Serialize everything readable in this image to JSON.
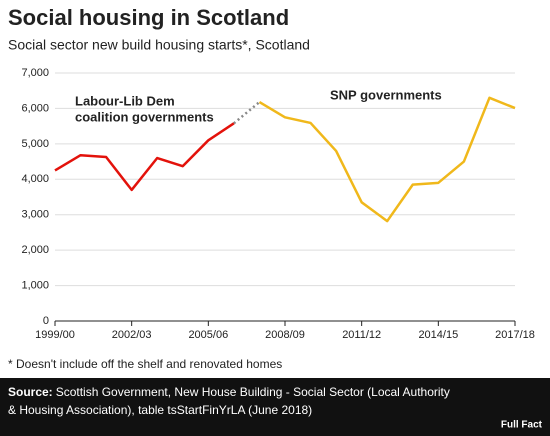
{
  "chart_data": {
    "type": "line",
    "title": "Social housing in Scotland",
    "subtitle": "Social sector new build housing starts*, Scotland",
    "categories": [
      "1999/00",
      null,
      null,
      "2002/03",
      null,
      null,
      "2005/06",
      null,
      null,
      "2008/09",
      null,
      null,
      "2011/12",
      null,
      null,
      "2014/15",
      null,
      null,
      "2017/18"
    ],
    "series": [
      {
        "color": "#e3120b",
        "values": [
          4250,
          4680,
          4630,
          3700,
          4600,
          4370,
          5100,
          5580,
          null,
          null,
          null,
          null,
          null,
          null,
          null,
          null,
          null,
          null,
          null
        ]
      },
      {
        "color": "#f0b81b",
        "values": [
          null,
          null,
          null,
          null,
          null,
          null,
          null,
          null,
          6180,
          5750,
          5590,
          4800,
          3350,
          2820,
          3850,
          3900,
          4500,
          6300,
          6010
        ]
      }
    ],
    "connector_color": "#888888",
    "annotations": [
      {
        "lines": [
          "Labour-Lib Dem",
          "coalition governments"
        ],
        "color": "#e3120b"
      },
      {
        "lines": [
          "SNP governments"
        ],
        "color": "#f0b81b"
      }
    ],
    "ylim": [
      0,
      7000
    ],
    "yticks": [
      0,
      {
        "value": 1000,
        "label": "1,000"
      },
      {
        "value": 2000,
        "label": "2,000"
      },
      {
        "value": 3000,
        "label": "3,000"
      },
      {
        "value": 4000,
        "label": "4,000"
      },
      {
        "value": 5000,
        "label": "5,000"
      },
      {
        "value": 6000,
        "label": "6,000"
      },
      {
        "value": 7000,
        "label": "7,000"
      }
    ],
    "grid": true,
    "footnote": "* Doesn't include off the shelf and renovated homes",
    "source": {
      "label": "Source:",
      "lines": [
        "Scottish Government, New House Building - Social Sector (Local Authority",
        "& Housing Association), table tsStartFinYrLA (June 2018)"
      ]
    },
    "logo": "Full Fact"
  }
}
